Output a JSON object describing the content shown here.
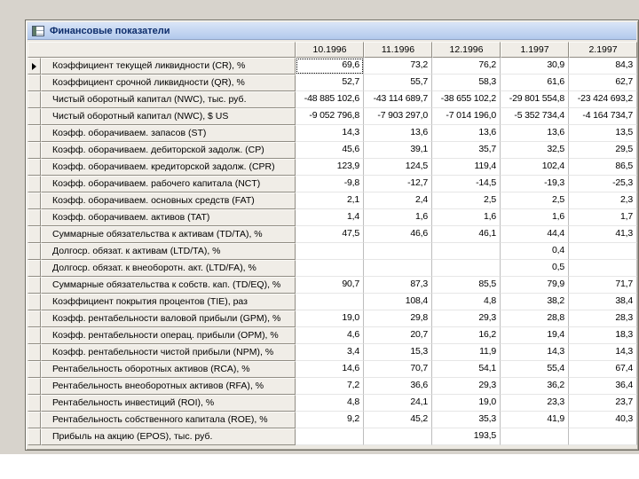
{
  "window": {
    "title": "Финансовые показатели",
    "icon": "table-grid-icon"
  },
  "colors": {
    "titlebar": "#c6d7f1",
    "window_background": "#ece9e2",
    "desktop_background": "#d7d3cc",
    "selection_outline": "#000000"
  },
  "table": {
    "corner": "",
    "columns": [
      "10.1996",
      "11.1996",
      "12.1996",
      "1.1997",
      "2.1997"
    ],
    "rows": [
      {
        "label": "Коэффициент текущей ликвидности (CR), %",
        "values": [
          "69,6",
          "73,2",
          "76,2",
          "30,9",
          "84,3"
        ]
      },
      {
        "label": "Коэффициент срочной ликвидности (QR), %",
        "values": [
          "52,7",
          "55,7",
          "58,3",
          "61,6",
          "62,7"
        ]
      },
      {
        "label": "Чистый оборотный капитал (NWC), тыс. руб.",
        "values": [
          "-48 885 102,6",
          "-43 114 689,7",
          "-38 655 102,2",
          "-29 801 554,8",
          "-23 424 693,2"
        ]
      },
      {
        "label": "Чистый оборотный капитал (NWC), $ US",
        "values": [
          "-9 052 796,8",
          "-7 903 297,0",
          "-7 014 196,0",
          "-5 352 734,4",
          "-4 164 734,7"
        ]
      },
      {
        "label": "Коэфф. оборачиваем. запасов (ST)",
        "values": [
          "14,3",
          "13,6",
          "13,6",
          "13,6",
          "13,5"
        ]
      },
      {
        "label": "Коэфф. оборачиваем. дебиторской задолж. (CP)",
        "values": [
          "45,6",
          "39,1",
          "35,7",
          "32,5",
          "29,5"
        ]
      },
      {
        "label": "Коэфф. оборачиваем. кредиторской задолж. (CPR)",
        "values": [
          "123,9",
          "124,5",
          "119,4",
          "102,4",
          "86,5"
        ]
      },
      {
        "label": "Коэфф. оборачиваем. рабочего капитала (NCT)",
        "values": [
          "-9,8",
          "-12,7",
          "-14,5",
          "-19,3",
          "-25,3"
        ]
      },
      {
        "label": "Коэфф. оборачиваем. основных средств (FAT)",
        "values": [
          "2,1",
          "2,4",
          "2,5",
          "2,5",
          "2,3"
        ]
      },
      {
        "label": "Коэфф. оборачиваем. активов (TAT)",
        "values": [
          "1,4",
          "1,6",
          "1,6",
          "1,6",
          "1,7"
        ]
      },
      {
        "label": "Суммарные обязательства к активам (TD/TA), %",
        "values": [
          "47,5",
          "46,6",
          "46,1",
          "44,4",
          "41,3"
        ]
      },
      {
        "label": "Долгоср. обязат. к активам (LTD/TA), %",
        "values": [
          "",
          "",
          "",
          "0,4",
          ""
        ]
      },
      {
        "label": "Долгоср. обязат. к внеоборотн. акт. (LTD/FA), %",
        "values": [
          "",
          "",
          "",
          "0,5",
          ""
        ]
      },
      {
        "label": "Суммарные обязательства к собств. кап. (TD/EQ), %",
        "values": [
          "90,7",
          "87,3",
          "85,5",
          "79,9",
          "71,7"
        ]
      },
      {
        "label": "Коэффициент покрытия процентов (TIE), раз",
        "values": [
          "",
          "108,4",
          "4,8",
          "38,2",
          "38,4"
        ]
      },
      {
        "label": "Коэфф. рентабельности валовой прибыли (GPM), %",
        "values": [
          "19,0",
          "29,8",
          "29,3",
          "28,8",
          "28,3"
        ]
      },
      {
        "label": "Коэфф. рентабельности операц. прибыли (OPM), %",
        "values": [
          "4,6",
          "20,7",
          "16,2",
          "19,4",
          "18,3"
        ]
      },
      {
        "label": "Коэфф. рентабельности чистой прибыли (NPM), %",
        "values": [
          "3,4",
          "15,3",
          "11,9",
          "14,3",
          "14,3"
        ]
      },
      {
        "label": "Рентабельность оборотных активов (RCA), %",
        "values": [
          "14,6",
          "70,7",
          "54,1",
          "55,4",
          "67,4"
        ]
      },
      {
        "label": "Рентабельность внеоборотных активов (RFA), %",
        "values": [
          "7,2",
          "36,6",
          "29,3",
          "36,2",
          "36,4"
        ]
      },
      {
        "label": "Рентабельность инвестиций (ROI), %",
        "values": [
          "4,8",
          "24,1",
          "19,0",
          "23,3",
          "23,7"
        ]
      },
      {
        "label": "Рентабельность собственного капитала (ROE), %",
        "values": [
          "9,2",
          "45,2",
          "35,3",
          "41,9",
          "40,3"
        ]
      },
      {
        "label": "Прибыль на акцию (EPOS), тыс. руб.",
        "values": [
          "",
          "",
          "193,5",
          "",
          ""
        ]
      }
    ]
  }
}
